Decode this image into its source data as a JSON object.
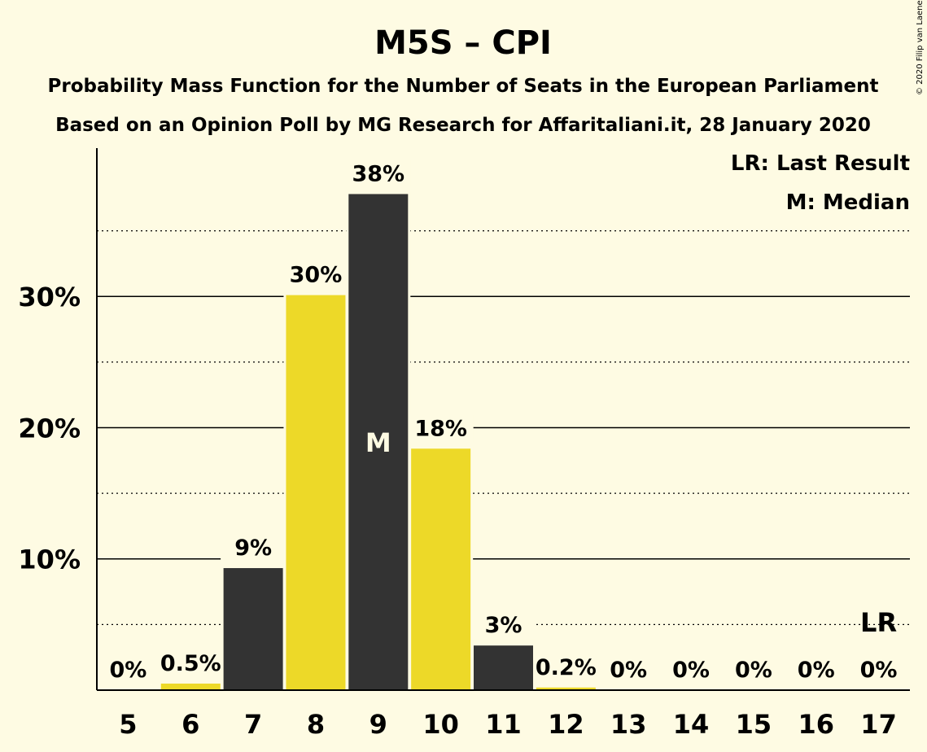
{
  "chart_data": {
    "type": "bar",
    "title": "M5S – CPI",
    "subtitle_lines": [
      "Probability Mass Function for the Number of Seats in the European Parliament",
      "Based on an Opinion Poll by MG Research for Affaritaliani.it, 28 January 2020"
    ],
    "credit": "© 2020 Filip van Laenen",
    "categories": [
      "5",
      "6",
      "7",
      "8",
      "9",
      "10",
      "11",
      "12",
      "13",
      "14",
      "15",
      "16",
      "17"
    ],
    "values": [
      0,
      0.5,
      9.3,
      30.1,
      37.8,
      18.4,
      3.4,
      0.2,
      0,
      0,
      0,
      0,
      0
    ],
    "data_labels": [
      "0%",
      "0.5%",
      "9%",
      "30%",
      "38%",
      "18%",
      "3%",
      "0.2%",
      "0%",
      "0%",
      "0%",
      "0%",
      "0%"
    ],
    "bar_colors": [
      "#333333",
      "#EDD928",
      "#333333",
      "#EDD928",
      "#333333",
      "#EDD928",
      "#333333",
      "#EDD928",
      "#333333",
      "#EDD928",
      "#333333",
      "#EDD928",
      "#333333"
    ],
    "ylim": [
      0,
      41.3
    ],
    "yticks": [
      10,
      20,
      30
    ],
    "ytick_labels": [
      "10%",
      "20%",
      "30%"
    ],
    "minor_gridlines": [
      5,
      15,
      25,
      35
    ],
    "median_category": "9",
    "median_marker": "M",
    "last_result_category": "17",
    "last_result_marker": "LR",
    "legend": [
      "LR: Last Result",
      "M: Median"
    ],
    "legend_position": "top-right",
    "grid": true
  }
}
